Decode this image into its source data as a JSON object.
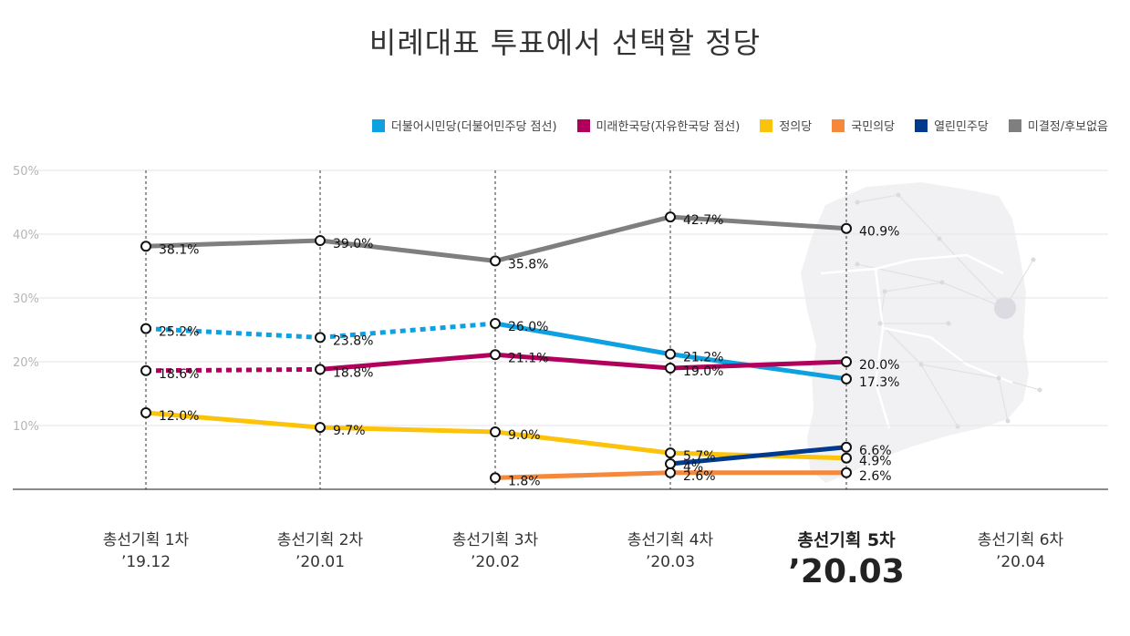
{
  "chart_data": {
    "type": "line",
    "title": "비례대표 투표에서 선택할 정당",
    "y_ticks": [
      "50%",
      "40%",
      "30%",
      "20%",
      "10%"
    ],
    "ylim": [
      0,
      50
    ],
    "grid": true,
    "legend_position": "top-right",
    "categories": [
      {
        "name": "총선기획 1차",
        "date": "’19.12"
      },
      {
        "name": "총선기획 2차",
        "date": "’20.01"
      },
      {
        "name": "총선기획 3차",
        "date": "’20.02"
      },
      {
        "name": "총선기획 4차",
        "date": "’20.03"
      },
      {
        "name": "총선기획 5차",
        "date": "’20.03",
        "highlight": true
      },
      {
        "name": "총선기획 6차",
        "date": "’20.04"
      }
    ],
    "series": [
      {
        "name": "더불어시민당(더불어민주당 점선)",
        "color": "#0ea1e1",
        "values": [
          25.2,
          23.8,
          26.0,
          21.2,
          17.3,
          null
        ],
        "labels": [
          "25.2%",
          "23.8%",
          "26.0%",
          "21.2%",
          "17.3%",
          ""
        ],
        "dashed_until": 2
      },
      {
        "name": "미래한국당(자유한국당 점선)",
        "color": "#b0005c",
        "values": [
          18.6,
          18.8,
          21.1,
          19.0,
          20.0,
          null
        ],
        "labels": [
          "18.6%",
          "18.8%",
          "21.1%",
          "19.0%",
          "20.0%",
          ""
        ],
        "dashed_until": 1
      },
      {
        "name": "정의당",
        "color": "#fcc30b",
        "values": [
          12.0,
          9.7,
          9.0,
          5.7,
          4.9,
          null
        ],
        "labels": [
          "12.0%",
          "9.7%",
          "9.0%",
          "5.7%",
          "4.9%",
          ""
        ]
      },
      {
        "name": "국민의당",
        "color": "#f5883b",
        "values": [
          null,
          null,
          1.8,
          2.6,
          2.6,
          null
        ],
        "labels": [
          "",
          "",
          "1.8%",
          "2.6%",
          "2.6%",
          ""
        ]
      },
      {
        "name": "열린민주당",
        "color": "#003a8f",
        "values": [
          null,
          null,
          null,
          4,
          6.6,
          null
        ],
        "labels": [
          "",
          "",
          "",
          "4%",
          "6.6%",
          ""
        ]
      },
      {
        "name": "미결정/후보없음",
        "color": "#7f7f7f",
        "values": [
          38.1,
          39.0,
          35.8,
          42.7,
          40.9,
          null
        ],
        "labels": [
          "38.1%",
          "39.0%",
          "35.8%",
          "42.7%",
          "40.9%",
          ""
        ]
      }
    ]
  }
}
